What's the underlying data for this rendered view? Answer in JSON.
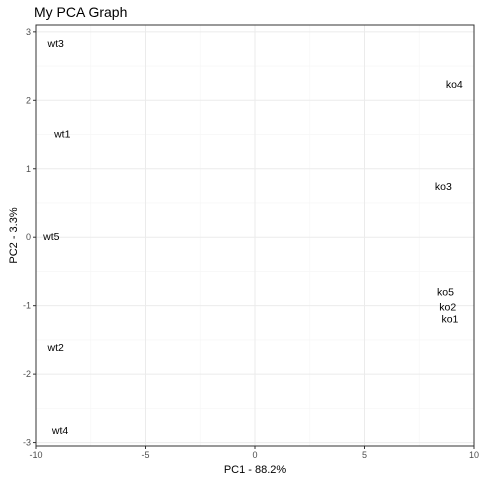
{
  "chart_data": {
    "type": "scatter",
    "title": "My PCA Graph",
    "xlabel": "PC1 - 88.2%",
    "ylabel": "PC2 - 3.3%",
    "xlim": [
      -10,
      10
    ],
    "ylim": [
      -3.05,
      3.1
    ],
    "x_ticks": [
      -10,
      -5,
      0,
      5,
      10
    ],
    "y_ticks": [
      -3,
      -2,
      -1,
      0,
      1,
      2,
      3
    ],
    "x_tick_labels": [
      "-10",
      "-5",
      "0",
      "5",
      "10"
    ],
    "y_tick_labels": [
      "-3",
      "-2",
      "-1",
      "0",
      "1",
      "2",
      "3"
    ],
    "grid": true,
    "marker": "text-label",
    "points": [
      {
        "label": "wt1",
        "x": -8.8,
        "y": 1.5
      },
      {
        "label": "wt2",
        "x": -9.1,
        "y": -1.62
      },
      {
        "label": "wt3",
        "x": -9.1,
        "y": 2.82
      },
      {
        "label": "wt4",
        "x": -8.9,
        "y": -2.83
      },
      {
        "label": "wt5",
        "x": -9.3,
        "y": 0.0
      },
      {
        "label": "ko1",
        "x": 8.9,
        "y": -1.2
      },
      {
        "label": "ko2",
        "x": 8.8,
        "y": -1.03
      },
      {
        "label": "ko3",
        "x": 8.6,
        "y": 0.73
      },
      {
        "label": "ko4",
        "x": 9.1,
        "y": 2.22
      },
      {
        "label": "ko5",
        "x": 8.7,
        "y": -0.81
      }
    ],
    "colors": {
      "panel_background": "#ffffff",
      "grid_major": "#ebebeb",
      "grid_minor": "#f5f5f5",
      "border": "#333333",
      "tick_label": "#4d4d4d",
      "text": "#000000"
    }
  }
}
